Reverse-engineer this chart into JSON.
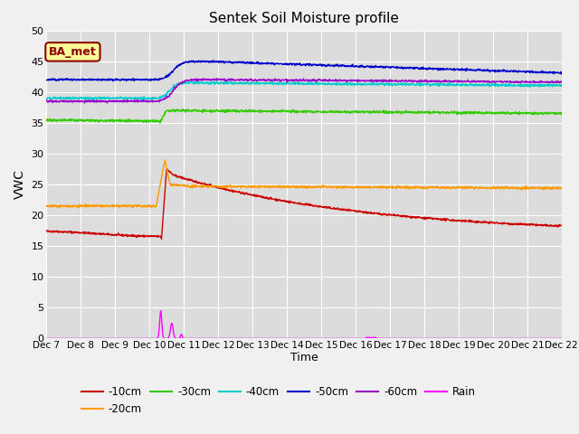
{
  "title": "Sentek Soil Moisture profile",
  "xlabel": "Time",
  "ylabel": "VWC",
  "legend_label": "BA_met",
  "ylim": [
    0,
    50
  ],
  "xlim": [
    0,
    15
  ],
  "x_tick_labels": [
    "Dec 7",
    "Dec 8",
    "Dec 9",
    "Dec 10",
    "Dec 11",
    "Dec 12",
    "Dec 13",
    "Dec 14",
    "Dec 15",
    "Dec 16",
    "Dec 17",
    "Dec 18",
    "Dec 19",
    "Dec 20",
    "Dec 21",
    "Dec 22"
  ],
  "yticks": [
    0,
    5,
    10,
    15,
    20,
    25,
    30,
    35,
    40,
    45,
    50
  ],
  "bg_color": "#dcdcdc",
  "fig_color": "#f0f0f0",
  "colors": {
    "10cm": "#cc0000",
    "20cm": "#ff9900",
    "30cm": "#33cc00",
    "40cm": "#00cccc",
    "50cm": "#0000cc",
    "60cm": "#9900cc",
    "rain": "#ff00ff"
  }
}
